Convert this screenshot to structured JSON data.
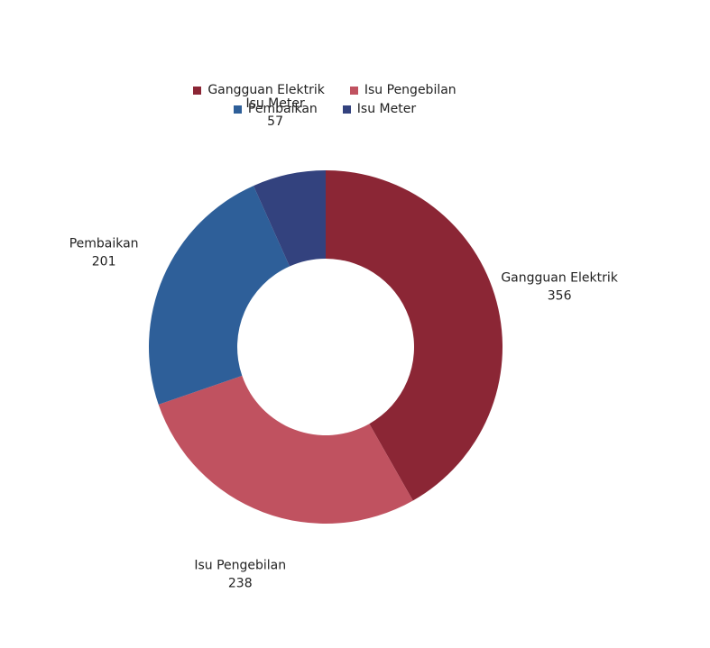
{
  "chart_data": {
    "type": "pie",
    "title": "",
    "legend_position": "top",
    "categories": [
      "Gangguan Elektrik",
      "Isu Pengebilan",
      "Pembaikan",
      "Isu Meter"
    ],
    "values": [
      356,
      238,
      201,
      57
    ],
    "colors": [
      "#8b2635",
      "#c05260",
      "#2e5f99",
      "#33427e"
    ],
    "donut": true
  },
  "legend": [
    {
      "label": "Gangguan Elektrik",
      "color": "#8b2635"
    },
    {
      "label": "Isu Pengebilan",
      "color": "#c05260"
    },
    {
      "label": "Pembaikan",
      "color": "#2e5f99"
    },
    {
      "label": "Isu Meter",
      "color": "#33427e"
    }
  ]
}
